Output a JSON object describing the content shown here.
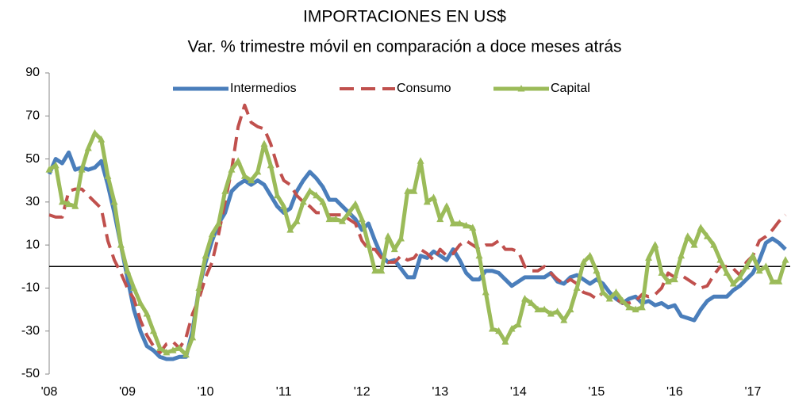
{
  "chart_data": {
    "type": "line",
    "title": "IMPORTACIONES EN US$",
    "subtitle": "Var. % trimestre móvil en comparación a doce meses atrás",
    "categories": [
      "'08",
      null,
      null,
      null,
      null,
      null,
      null,
      null,
      null,
      null,
      null,
      null,
      "'09",
      null,
      null,
      null,
      null,
      null,
      null,
      null,
      null,
      null,
      null,
      null,
      "'10",
      null,
      null,
      null,
      null,
      null,
      null,
      null,
      null,
      null,
      null,
      null,
      "'11",
      null,
      null,
      null,
      null,
      null,
      null,
      null,
      null,
      null,
      null,
      null,
      "'12",
      null,
      null,
      null,
      null,
      null,
      null,
      null,
      null,
      null,
      null,
      null,
      "'13",
      null,
      null,
      null,
      null,
      null,
      null,
      null,
      null,
      null,
      null,
      null,
      "'14",
      null,
      null,
      null,
      null,
      null,
      null,
      null,
      null,
      null,
      null,
      null,
      "'15",
      null,
      null,
      null,
      null,
      null,
      null,
      null,
      null,
      null,
      null,
      null,
      "'16",
      null,
      null,
      null,
      null,
      null,
      null,
      null,
      null,
      null,
      null,
      null,
      "'17",
      null,
      null,
      null,
      null,
      null
    ],
    "series": [
      {
        "name": "Intermedios",
        "color": "#4a7ebb",
        "style": "solid",
        "marker": "none",
        "values": [
          43,
          50,
          48,
          53,
          45,
          46,
          45,
          46,
          49,
          38,
          25,
          10,
          -5,
          -20,
          -30,
          -37,
          -39,
          -42,
          -43,
          -43,
          -42,
          -42,
          -30,
          -10,
          2,
          12,
          20,
          25,
          35,
          38,
          40,
          38,
          40,
          38,
          33,
          28,
          25,
          27,
          35,
          40,
          44,
          41,
          37,
          31,
          31,
          28,
          25,
          22,
          17,
          20,
          12,
          5,
          2,
          3,
          -1,
          -5,
          -5,
          5,
          4,
          7,
          5,
          3,
          8,
          3,
          -3,
          -6,
          -6,
          -2,
          -2,
          -3,
          -6,
          -9,
          -7,
          -5,
          -5,
          -5,
          -5,
          -3,
          -7,
          -8,
          -5,
          -4,
          -6,
          -8,
          -6,
          -8,
          -12,
          -15,
          -17,
          -15,
          -14,
          -17,
          -16,
          -18,
          -17,
          -19,
          -18,
          -23,
          -24,
          -25,
          -20,
          -16,
          -14,
          -14,
          -14,
          -11,
          -9,
          -6,
          -3,
          3,
          11,
          13,
          11,
          8
        ]
      },
      {
        "name": "Consumo",
        "color": "#c0504d",
        "style": "dashed",
        "marker": "none",
        "values": [
          24,
          23,
          23,
          35,
          36,
          36,
          33,
          30,
          27,
          12,
          3,
          -3,
          -10,
          -15,
          -25,
          -32,
          -37,
          -40,
          -36,
          -35,
          -38,
          -33,
          -22,
          -15,
          -5,
          2,
          15,
          30,
          45,
          65,
          75,
          67,
          65,
          64,
          57,
          47,
          40,
          38,
          33,
          30,
          28,
          25,
          25,
          24,
          24,
          24,
          22,
          20,
          12,
          8,
          8,
          4,
          2,
          2,
          5,
          3,
          4,
          8,
          6,
          3,
          8,
          5,
          6,
          10,
          12,
          10,
          8,
          10,
          10,
          12,
          8,
          8,
          7,
          0,
          -2,
          -2,
          0,
          -3,
          -6,
          -8,
          -6,
          -8,
          -12,
          -13,
          -15,
          -12,
          -15,
          -15,
          -17,
          -17,
          -16,
          -13,
          -14,
          -13,
          -10,
          -3,
          -5,
          -4,
          -6,
          -8,
          -10,
          -9,
          -4,
          0,
          0,
          -1,
          -4,
          2,
          5,
          12,
          14,
          17,
          21,
          24
        ]
      },
      {
        "name": "Capital",
        "color": "#9bbb59",
        "style": "solid",
        "marker": "triangle",
        "values": [
          45,
          47,
          30,
          29,
          28,
          45,
          55,
          62,
          59,
          42,
          30,
          10,
          -2,
          -10,
          -17,
          -22,
          -30,
          -38,
          -40,
          -39,
          -38,
          -41,
          -33,
          -10,
          5,
          15,
          20,
          35,
          45,
          49,
          42,
          40,
          44,
          57,
          47,
          33,
          28,
          17,
          21,
          30,
          35,
          33,
          30,
          22,
          22,
          21,
          25,
          29,
          22,
          10,
          -2,
          -2,
          14,
          8,
          13,
          35,
          35,
          49,
          30,
          32,
          22,
          28,
          20,
          20,
          19,
          18,
          5,
          -12,
          -29,
          -30,
          -35,
          -29,
          -27,
          -15,
          -17,
          -20,
          -20,
          -22,
          -21,
          -25,
          -20,
          -10,
          2,
          5,
          -2,
          -12,
          -15,
          -12,
          -16,
          -19,
          -20,
          -19,
          4,
          10,
          -3,
          -7,
          -6,
          5,
          14,
          10,
          18,
          14,
          10,
          3,
          -3,
          -8,
          -5,
          0,
          5,
          -2,
          0,
          -7,
          -7,
          3
        ]
      }
    ],
    "ylim": [
      -50,
      90
    ],
    "yticks": [
      -50,
      -30,
      -10,
      10,
      30,
      50,
      70,
      90
    ],
    "grid": false,
    "legend": "top"
  }
}
